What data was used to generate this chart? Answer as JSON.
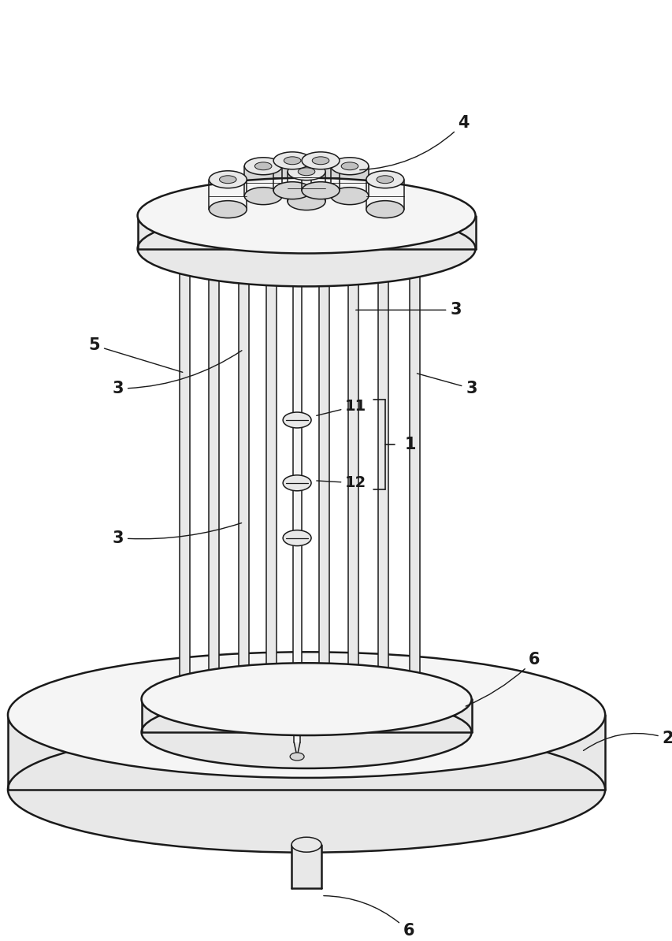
{
  "bg_color": "#ffffff",
  "lc": "#1a1a1a",
  "lw_main": 1.8,
  "lw_thin": 1.1,
  "lw_label": 1.0,
  "figsize": [
    8.54,
    11.94
  ],
  "dpi": 100,
  "fills": {
    "light": "#f5f5f5",
    "mid": "#e8e8e8",
    "dark": "#d5d5d5",
    "darker": "#c0c0c0"
  }
}
